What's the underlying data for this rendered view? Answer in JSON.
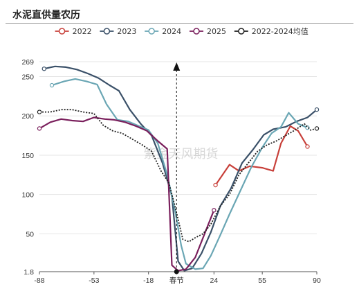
{
  "title": "水泥直供量农历",
  "watermark": "紫金天风期货",
  "chart_data": {
    "type": "line",
    "title": "水泥直供量农历",
    "xlabel": "",
    "ylabel": "",
    "xlim": [
      -88,
      90
    ],
    "ylim": [
      1.8,
      269
    ],
    "x_ticks": [
      {
        "value": -88,
        "label": "-88"
      },
      {
        "value": -53,
        "label": "-53"
      },
      {
        "value": -18,
        "label": "-18"
      },
      {
        "value": 0,
        "label": "春节"
      },
      {
        "value": 24,
        "label": "24"
      },
      {
        "value": 55,
        "label": "55"
      },
      {
        "value": 90,
        "label": "90"
      }
    ],
    "y_ticks": [
      {
        "value": 1.8,
        "label": "1.8"
      },
      {
        "value": 50,
        "label": "50"
      },
      {
        "value": 100,
        "label": "100"
      },
      {
        "value": 150,
        "label": "150"
      },
      {
        "value": 200,
        "label": "200"
      },
      {
        "value": 250,
        "label": "250"
      },
      {
        "value": 269,
        "label": "269"
      }
    ],
    "grid": "horizontal",
    "legend_position": "top",
    "marker": {
      "x": 0,
      "label": "春节"
    },
    "series": [
      {
        "name": "2022",
        "color": "#c8403a",
        "dash": "",
        "endpoint_markers": true,
        "points": [
          [
            25,
            112
          ],
          [
            34,
            138
          ],
          [
            40,
            130
          ],
          [
            47,
            136
          ],
          [
            55,
            134
          ],
          [
            62,
            130
          ],
          [
            67,
            165
          ],
          [
            73,
            187
          ],
          [
            78,
            181
          ],
          [
            84,
            161
          ]
        ]
      },
      {
        "name": "2023",
        "color": "#3a5068",
        "dash": "",
        "endpoint_markers": true,
        "points": [
          [
            -85,
            260
          ],
          [
            -78,
            263
          ],
          [
            -71,
            262
          ],
          [
            -64,
            259
          ],
          [
            -57,
            254
          ],
          [
            -50,
            248
          ],
          [
            -43,
            239
          ],
          [
            -37,
            232
          ],
          [
            -30,
            208
          ],
          [
            -23,
            190
          ],
          [
            -16,
            175
          ],
          [
            -9,
            140
          ],
          [
            -3,
            98
          ],
          [
            1,
            15
          ],
          [
            5,
            3
          ],
          [
            10,
            6
          ],
          [
            16,
            25
          ],
          [
            22,
            52
          ],
          [
            28,
            85
          ],
          [
            35,
            108
          ],
          [
            42,
            140
          ],
          [
            49,
            157
          ],
          [
            56,
            176
          ],
          [
            62,
            183
          ],
          [
            70,
            186
          ],
          [
            77,
            193
          ],
          [
            84,
            198
          ],
          [
            90,
            208
          ]
        ]
      },
      {
        "name": "2024",
        "color": "#6aa6b4",
        "dash": "",
        "endpoint_markers": true,
        "points": [
          [
            -80,
            239
          ],
          [
            -72,
            244
          ],
          [
            -65,
            247
          ],
          [
            -58,
            244
          ],
          [
            -51,
            240
          ],
          [
            -45,
            215
          ],
          [
            -38,
            195
          ],
          [
            -31,
            193
          ],
          [
            -24,
            187
          ],
          [
            -18,
            182
          ],
          [
            -12,
            165
          ],
          [
            -6,
            125
          ],
          [
            -1,
            80
          ],
          [
            3,
            35
          ],
          [
            6,
            12
          ],
          [
            12,
            5
          ],
          [
            17,
            6
          ],
          [
            22,
            22
          ],
          [
            28,
            48
          ],
          [
            34,
            75
          ],
          [
            41,
            105
          ],
          [
            48,
            135
          ],
          [
            55,
            160
          ],
          [
            61,
            178
          ],
          [
            67,
            186
          ],
          [
            72,
            204
          ],
          [
            78,
            190
          ],
          [
            84,
            185
          ]
        ]
      },
      {
        "name": "2025",
        "color": "#7a1f5c",
        "dash": "",
        "endpoint_markers": true,
        "points": [
          [
            -88,
            184
          ],
          [
            -81,
            192
          ],
          [
            -74,
            196
          ],
          [
            -67,
            194
          ],
          [
            -60,
            193
          ],
          [
            -53,
            198
          ],
          [
            -46,
            196
          ],
          [
            -40,
            195
          ],
          [
            -33,
            192
          ],
          [
            -26,
            187
          ],
          [
            -19,
            181
          ],
          [
            -12,
            168
          ],
          [
            -6,
            158
          ],
          [
            -3,
            10
          ],
          [
            1,
            3
          ],
          [
            6,
            5
          ],
          [
            12,
            20
          ],
          [
            18,
            50
          ],
          [
            24,
            80
          ]
        ]
      },
      {
        "name": "2022-2024均值",
        "color": "#1e1e1e",
        "dash": "2,2",
        "endpoint_markers": true,
        "points": [
          [
            -88,
            205
          ],
          [
            -81,
            205
          ],
          [
            -74,
            208
          ],
          [
            -67,
            208
          ],
          [
            -60,
            205
          ],
          [
            -53,
            203
          ],
          [
            -47,
            188
          ],
          [
            -41,
            181
          ],
          [
            -35,
            178
          ],
          [
            -28,
            170
          ],
          [
            -22,
            163
          ],
          [
            -16,
            155
          ],
          [
            -10,
            130
          ],
          [
            -5,
            115
          ],
          [
            -1,
            85
          ],
          [
            4,
            43
          ],
          [
            8,
            40
          ],
          [
            12,
            45
          ],
          [
            17,
            50
          ],
          [
            22,
            62
          ],
          [
            28,
            85
          ],
          [
            34,
            100
          ],
          [
            40,
            125
          ],
          [
            46,
            140
          ],
          [
            52,
            155
          ],
          [
            58,
            163
          ],
          [
            64,
            168
          ],
          [
            70,
            175
          ],
          [
            76,
            182
          ],
          [
            82,
            190
          ],
          [
            86,
            182
          ],
          [
            90,
            184
          ]
        ]
      }
    ]
  }
}
